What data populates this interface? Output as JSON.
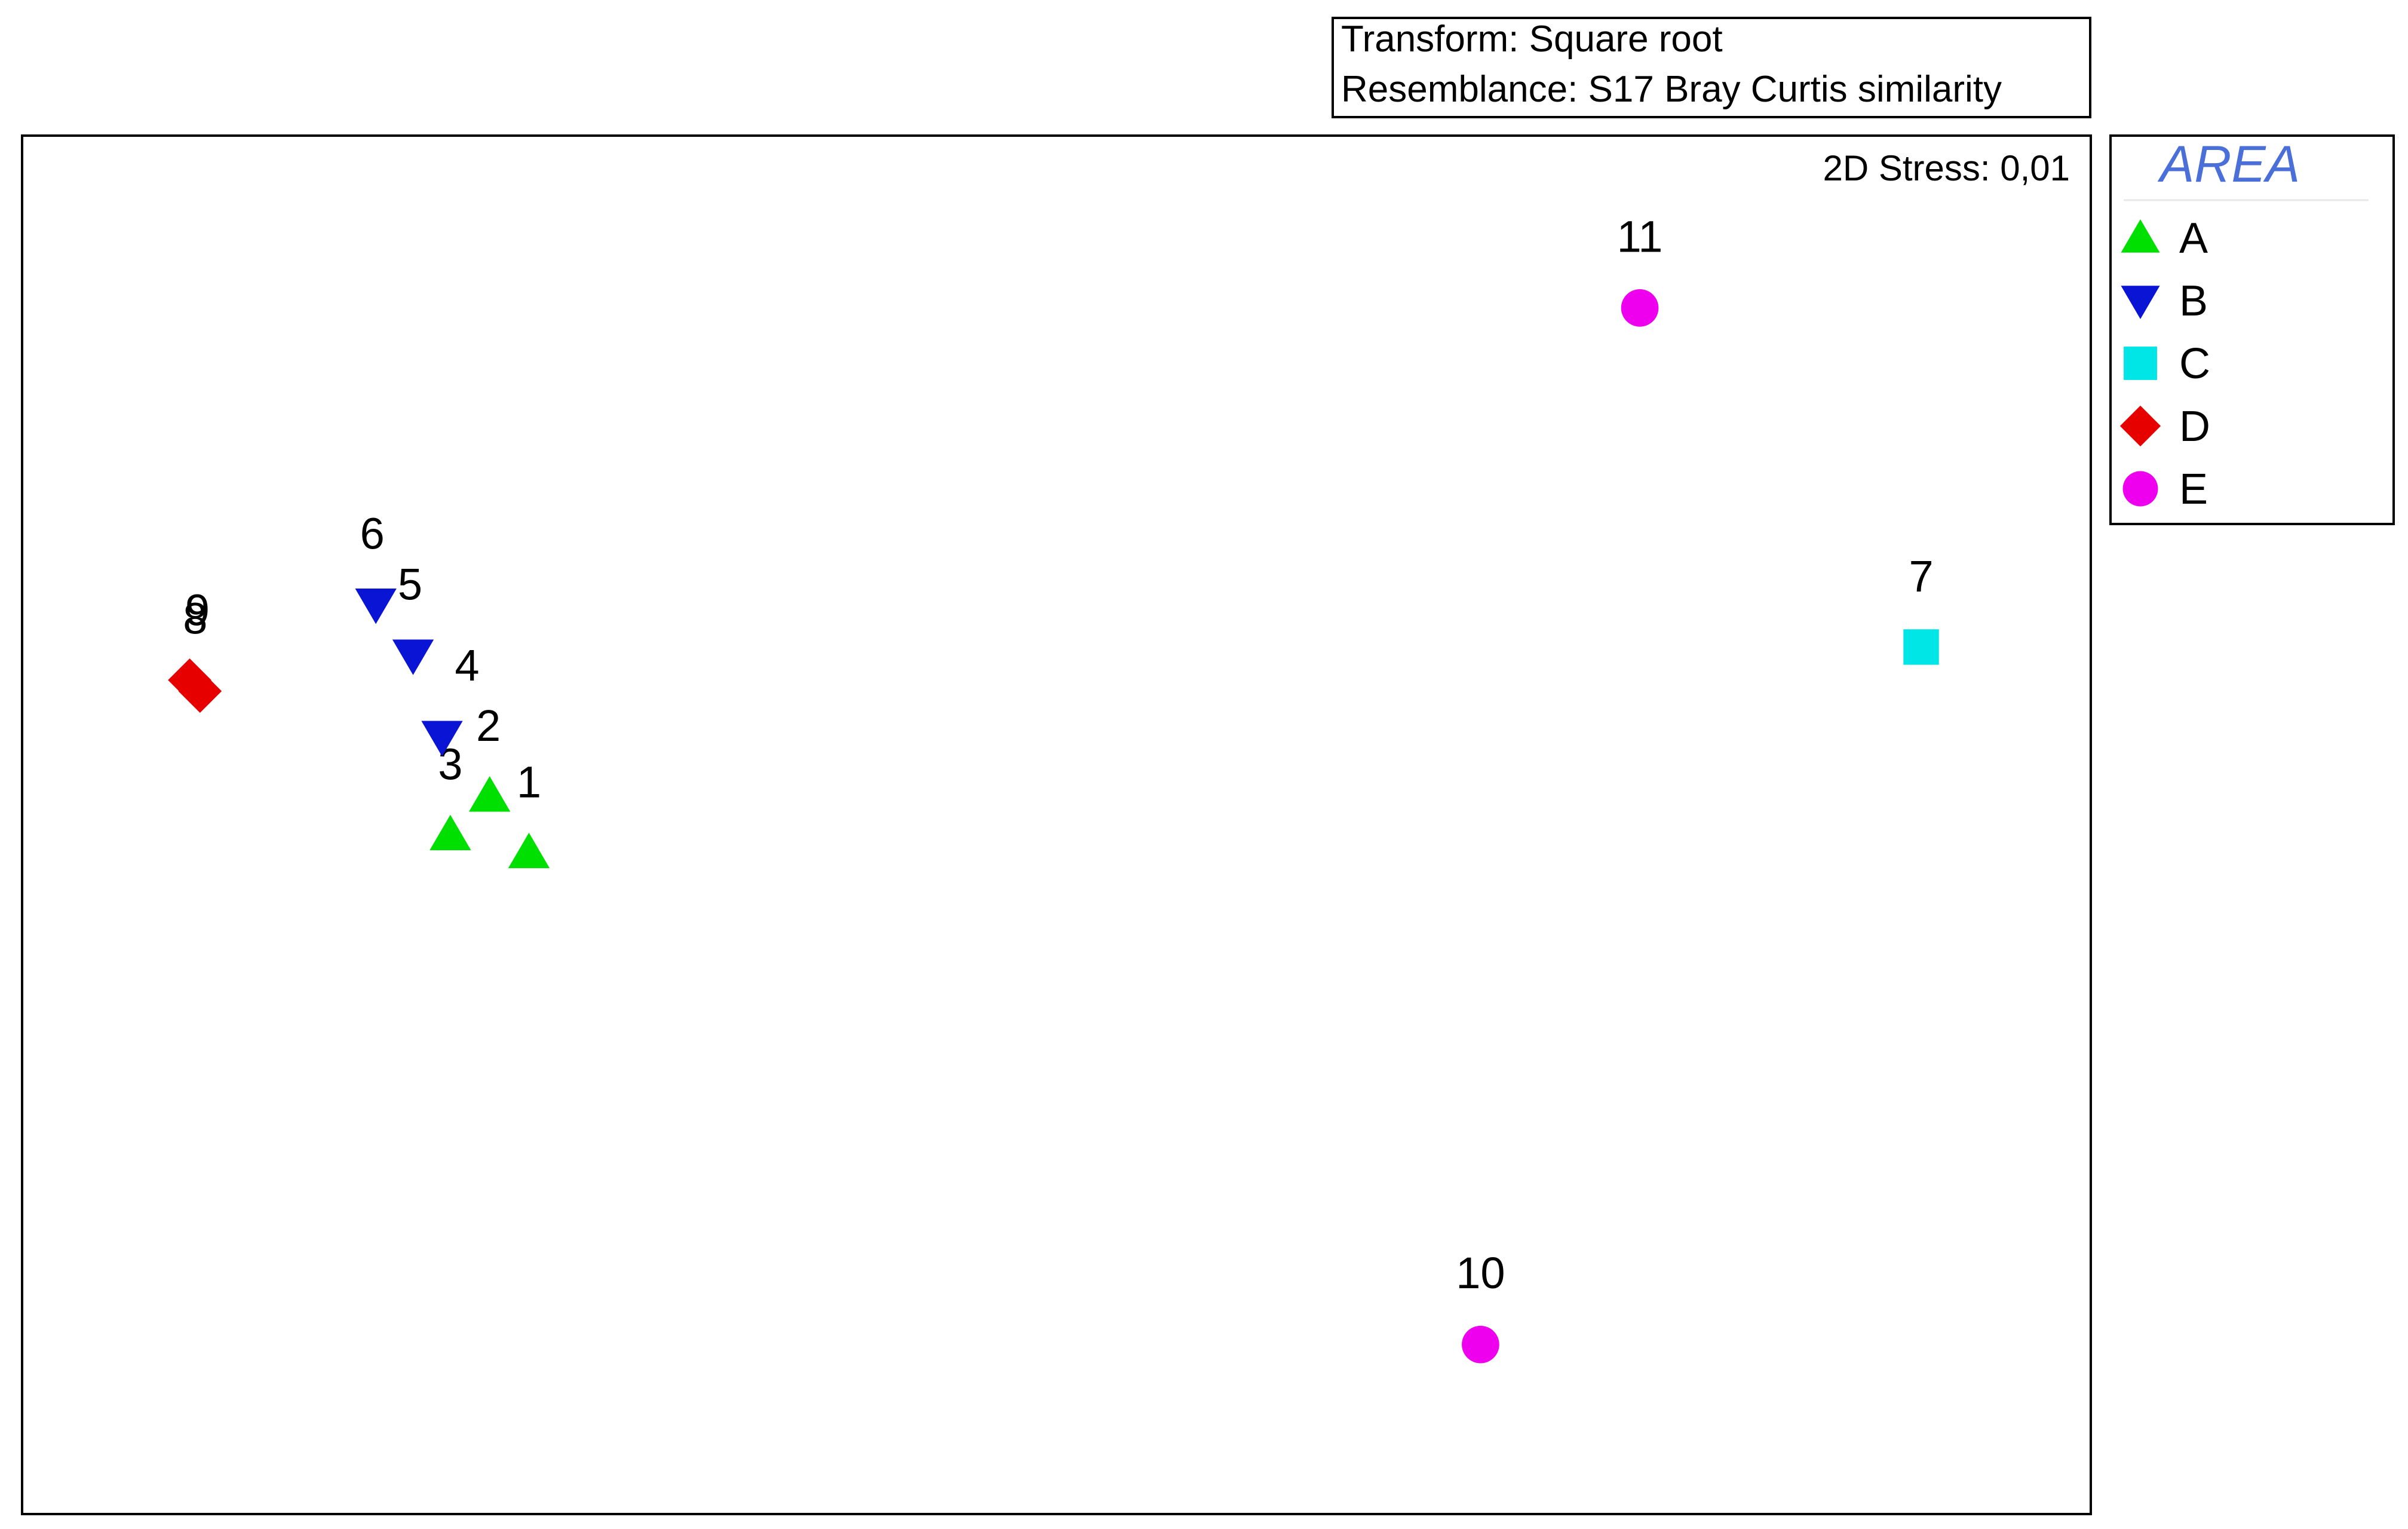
{
  "chart_data": {
    "type": "scatter",
    "transform_box": {
      "line1": "Transform: Square root",
      "line2": "Resemblance: S17 Bray Curtis similarity"
    },
    "stress_label": "2D Stress: 0,01",
    "legend": {
      "title": "AREA",
      "title_color": "#4a6fd8",
      "placement": "right-top",
      "entries": [
        {
          "label": "A",
          "shape": "triangle-up",
          "color": "#00e000"
        },
        {
          "label": "B",
          "shape": "triangle-down",
          "color": "#0a14d4"
        },
        {
          "label": "C",
          "shape": "square",
          "color": "#00e6e6"
        },
        {
          "label": "D",
          "shape": "diamond",
          "color": "#e60000"
        },
        {
          "label": "E",
          "shape": "circle",
          "color": "#ee00ee"
        }
      ]
    },
    "axes": {
      "shown": false,
      "grid": false,
      "xlim": [
        0,
        100
      ],
      "ylim": [
        0,
        100
      ]
    },
    "points": [
      {
        "label": "1",
        "group": "A",
        "x": 24.5,
        "y": 48.0
      },
      {
        "label": "2",
        "group": "A",
        "x": 22.6,
        "y": 52.1
      },
      {
        "label": "3",
        "group": "A",
        "x": 20.7,
        "y": 49.3
      },
      {
        "label": "4",
        "group": "B",
        "x": 20.3,
        "y": 56.4
      },
      {
        "label": "5",
        "group": "B",
        "x": 18.9,
        "y": 62.3
      },
      {
        "label": "6",
        "group": "B",
        "x": 17.1,
        "y": 66.0
      },
      {
        "label": "7",
        "group": "C",
        "x": 91.8,
        "y": 62.9
      },
      {
        "label": "8",
        "group": "D",
        "x": 8.6,
        "y": 59.7
      },
      {
        "label": "9",
        "group": "D",
        "x": 8.1,
        "y": 60.5
      },
      {
        "label": "10",
        "group": "E",
        "x": 70.5,
        "y": 12.3
      },
      {
        "label": "11",
        "group": "E",
        "x": 78.2,
        "y": 87.5
      }
    ]
  }
}
